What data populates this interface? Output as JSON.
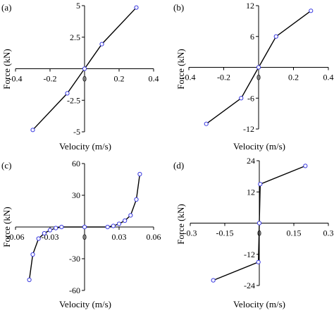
{
  "figure": {
    "panels": [
      {
        "label": "(a)",
        "xlabel": "Velocity (m/s)",
        "ylabel": "Force (kN)"
      },
      {
        "label": "(b)",
        "xlabel": "Velocity (m/s)",
        "ylabel": "Force (kN)"
      },
      {
        "label": "(c)",
        "xlabel": "Velocity (m/s)",
        "ylabel": "Force (kN)"
      },
      {
        "label": "(d)",
        "xlabel": "Velocity (m/s)",
        "ylabel": "Force (kN)"
      }
    ]
  },
  "chart_data": [
    {
      "type": "line",
      "panel": "(a)",
      "title": "",
      "xlabel": "Velocity (m/s)",
      "ylabel": "Force (kN)",
      "xlim": [
        -0.4,
        0.4
      ],
      "ylim": [
        -5,
        5
      ],
      "xticks": [
        -0.4,
        -0.2,
        0,
        0.2,
        0.4
      ],
      "xtick_labels": [
        "-0.4",
        "-0.2",
        "0",
        "0.2",
        "0.4"
      ],
      "yticks": [
        -5,
        -2.5,
        0,
        2.5,
        5
      ],
      "ytick_labels": [
        "-5",
        "-2.5",
        "0",
        "2.5",
        "5"
      ],
      "series": [
        {
          "x": [
            -0.3,
            -0.1,
            0,
            0.1,
            0.3
          ],
          "y": [
            -4.85,
            -1.95,
            0,
            1.95,
            4.85
          ]
        }
      ],
      "grid": false,
      "marker_color": "#3a3adf",
      "line_color": "#000000"
    },
    {
      "type": "line",
      "panel": "(b)",
      "title": "",
      "xlabel": "Velocity (m/s)",
      "ylabel": "Force (kN)",
      "xlim": [
        -0.4,
        0.4
      ],
      "ylim": [
        -12,
        12
      ],
      "xticks": [
        -0.4,
        -0.2,
        0,
        0.2,
        0.4
      ],
      "xtick_labels": [
        "-0.4",
        "-0.2",
        "0",
        "0.2",
        "0.4"
      ],
      "yticks": [
        -12,
        -6,
        0,
        6,
        12
      ],
      "ytick_labels": [
        "-12",
        "-6",
        "0",
        "6",
        "12"
      ],
      "series": [
        {
          "x": [
            -0.3,
            -0.1,
            0,
            0.1,
            0.3
          ],
          "y": [
            -11,
            -6,
            0,
            6,
            11
          ]
        }
      ],
      "grid": false,
      "marker_color": "#3a3adf",
      "line_color": "#000000"
    },
    {
      "type": "line",
      "panel": "(c)",
      "title": "",
      "xlabel": "Velocity (m/s)",
      "ylabel": "Force (kN)",
      "xlim": [
        -0.06,
        0.06
      ],
      "ylim": [
        -60,
        60
      ],
      "xticks": [
        -0.06,
        -0.03,
        0,
        0.03,
        0.06
      ],
      "xtick_labels": [
        "-0.06",
        "-0.03",
        "0",
        "0.03",
        "0.06"
      ],
      "yticks": [
        -60,
        -30,
        0,
        30,
        60
      ],
      "ytick_labels": [
        "-60",
        "-30",
        "0",
        "30",
        "60"
      ],
      "series": [
        {
          "x": [
            -0.048,
            -0.045,
            -0.04,
            -0.035,
            -0.03,
            -0.025,
            -0.02,
            0,
            0.02,
            0.025,
            0.03,
            0.035,
            0.04,
            0.045,
            0.048
          ],
          "y": [
            -50,
            -26,
            -11,
            -6,
            -3,
            -1,
            0,
            0,
            0,
            1,
            3,
            6,
            11,
            26,
            50
          ]
        }
      ],
      "grid": false,
      "marker_color": "#3a3adf",
      "line_color": "#000000"
    },
    {
      "type": "line",
      "panel": "(d)",
      "title": "",
      "xlabel": "Velocity (m/s)",
      "ylabel": "Force (kN)",
      "xlim": [
        -0.3,
        0.3
      ],
      "ylim": [
        -24,
        24
      ],
      "xticks": [
        -0.3,
        -0.15,
        0,
        0.15,
        0.3
      ],
      "xtick_labels": [
        "-0.3",
        "-0.15",
        "0",
        "0.15",
        "0.3"
      ],
      "yticks": [
        -24,
        -12,
        0,
        12,
        24
      ],
      "ytick_labels": [
        "-24",
        "-12",
        "0",
        "12",
        "24"
      ],
      "series": [
        {
          "x": [
            -0.2,
            -0.004,
            0,
            0.004,
            0.2
          ],
          "y": [
            -22,
            -15,
            0,
            15,
            22
          ]
        }
      ],
      "grid": false,
      "marker_color": "#3a3adf",
      "line_color": "#000000"
    }
  ]
}
